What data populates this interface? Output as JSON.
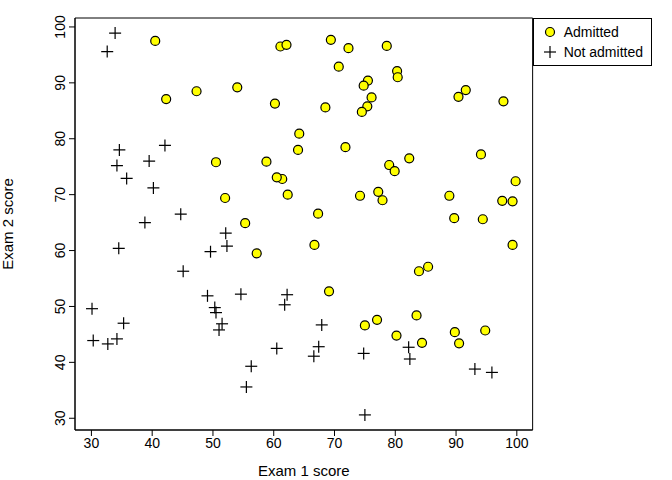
{
  "chart_data": {
    "type": "scatter",
    "x_label": "Exam 1 score",
    "y_label": "Exam 2 score",
    "xlim": [
      27.3,
      102.6
    ],
    "ylim": [
      27.9,
      101.6
    ],
    "xticks": [
      30,
      40,
      50,
      60,
      70,
      80,
      90,
      100
    ],
    "yticks": [
      30,
      40,
      50,
      60,
      70,
      80,
      90,
      100
    ],
    "grid": false,
    "legend": "top-right",
    "series": [
      {
        "name": "Admitted",
        "color": "#ffff00",
        "marker": "circle",
        "x": [
          60.2,
          79.0,
          61.1,
          75.0,
          76.1,
          84.4,
          82.3,
          69.4,
          54.0,
          69.1,
          70.7,
          77.0,
          89.7,
          77.9,
          62.3,
          80.2,
          61.4,
          85.4,
          52.0,
          64.2,
          83.9,
          94.4,
          77.2,
          97.8,
          62.1,
          91.6,
          79.9,
          99.3,
          90.5,
          97.6,
          74.2,
          71.8,
          75.4,
          40.5,
          80.3,
          66.7,
          64.0,
          72.3,
          60.5,
          58.8,
          99.8,
          47.3,
          50.5,
          88.9,
          94.8,
          67.3,
          57.2,
          80.4,
          68.5,
          75.5,
          78.6,
          94.1,
          90.4,
          74.5,
          89.8,
          83.5,
          42.3,
          99.3,
          55.3,
          74.8
        ],
        "values": [
          86.3,
          75.3,
          96.5,
          46.6,
          87.4,
          43.5,
          76.5,
          97.7,
          89.2,
          52.7,
          92.9,
          47.6,
          65.8,
          69.0,
          70.0,
          44.8,
          72.8,
          57.1,
          69.4,
          80.9,
          56.3,
          65.6,
          70.5,
          86.7,
          96.8,
          88.7,
          74.2,
          61.0,
          43.4,
          68.9,
          69.8,
          78.5,
          85.8,
          97.5,
          92.1,
          61.0,
          78.0,
          96.2,
          73.1,
          75.9,
          72.4,
          88.5,
          75.8,
          69.8,
          45.7,
          66.6,
          59.5,
          91.0,
          85.6,
          90.4,
          96.6,
          77.2,
          87.5,
          84.8,
          45.4,
          48.4,
          87.1,
          68.8,
          64.9,
          89.5
        ]
      },
      {
        "name": "Not admitted",
        "color": "#000000",
        "marker": "plus",
        "x": [
          34.6,
          30.3,
          35.8,
          45.1,
          95.9,
          75.0,
          39.5,
          67.9,
          67.4,
          50.5,
          34.2,
          93.1,
          61.8,
          38.8,
          52.1,
          40.2,
          54.6,
          33.9,
          74.8,
          34.2,
          51.5,
          82.4,
          51.0,
          62.2,
          34.5,
          50.3,
          49.6,
          32.6,
          35.3,
          56.3,
          30.1,
          44.7,
          66.6,
          49.1,
          32.7,
          60.5,
          82.2,
          42.1,
          52.3,
          55.5
        ],
        "values": [
          78.0,
          43.9,
          72.9,
          56.3,
          38.2,
          30.6,
          76.0,
          46.7,
          42.8,
          48.9,
          44.2,
          38.8,
          50.3,
          65.0,
          63.1,
          71.2,
          52.2,
          98.9,
          41.6,
          75.2,
          46.9,
          40.6,
          45.8,
          52.1,
          60.4,
          49.8,
          59.8,
          95.6,
          47.0,
          39.3,
          49.6,
          66.5,
          41.1,
          51.9,
          43.3,
          42.5,
          42.7,
          78.8,
          60.8,
          35.6
        ]
      }
    ]
  }
}
